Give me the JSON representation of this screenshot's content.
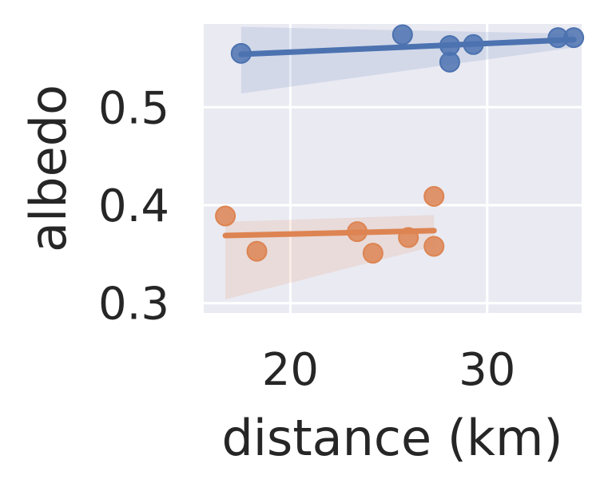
{
  "chart_data": {
    "type": "scatter",
    "title": "",
    "xlabel": "distance (km)",
    "ylabel": "albedo",
    "xlim": [
      15.6,
      34.8
    ],
    "ylim": [
      0.29,
      0.585
    ],
    "xticks": [
      20,
      30
    ],
    "xtick_labels": [
      "20",
      "30"
    ],
    "yticks": [
      0.3,
      0.4,
      0.5
    ],
    "ytick_labels": [
      "0.3",
      "0.4",
      "0.5"
    ],
    "grid": true,
    "background": "#eaeaf2",
    "series": [
      {
        "color": "#4c72b0",
        "points": [
          {
            "x": 17.5,
            "y": 0.555
          },
          {
            "x": 25.7,
            "y": 0.574
          },
          {
            "x": 28.1,
            "y": 0.563
          },
          {
            "x": 28.1,
            "y": 0.546
          },
          {
            "x": 29.3,
            "y": 0.564
          },
          {
            "x": 33.6,
            "y": 0.571
          },
          {
            "x": 34.4,
            "y": 0.571
          }
        ],
        "fit": {
          "x": [
            17.5,
            34.4
          ],
          "y": [
            0.554,
            0.569
          ]
        },
        "ci": {
          "x": [
            17.5,
            34.4
          ],
          "lower": [
            0.514,
            0.561
          ],
          "upper": [
            0.582,
            0.575
          ]
        }
      },
      {
        "color": "#dd8452",
        "points": [
          {
            "x": 16.7,
            "y": 0.389
          },
          {
            "x": 18.3,
            "y": 0.353
          },
          {
            "x": 23.4,
            "y": 0.373
          },
          {
            "x": 24.2,
            "y": 0.351
          },
          {
            "x": 26.0,
            "y": 0.367
          },
          {
            "x": 27.3,
            "y": 0.409
          },
          {
            "x": 27.3,
            "y": 0.358
          }
        ],
        "fit": {
          "x": [
            16.7,
            27.3
          ],
          "y": [
            0.369,
            0.374
          ]
        },
        "ci": {
          "x": [
            16.7,
            27.3
          ],
          "lower": [
            0.304,
            0.358
          ],
          "upper": [
            0.383,
            0.39
          ]
        }
      }
    ]
  }
}
